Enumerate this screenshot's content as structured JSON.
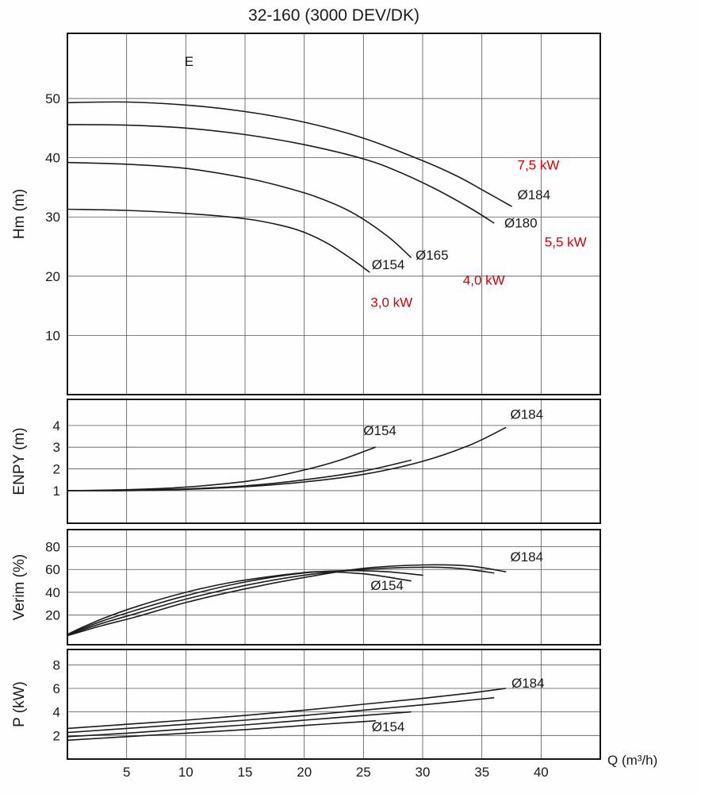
{
  "title": "32-160 (3000 DEV/DK)",
  "x_axis_label": "Q (m³/h)",
  "colors": {
    "curve": "#1c1c1c",
    "grid": "#555555",
    "frame": "#141414",
    "text": "#1a1a1a",
    "power_label": "#d40000"
  },
  "chart_data": [
    {
      "type": "line",
      "title": "32-160 (3000 DEV/DK)",
      "xlabel": "Q (m³/h)",
      "ylabel": "Hm (m)",
      "xlim": [
        0,
        45
      ],
      "ylim": [
        0,
        61
      ],
      "xticks": [
        5,
        10,
        15,
        20,
        25,
        30,
        35,
        40
      ],
      "yticks": [
        10,
        20,
        30,
        40,
        50
      ],
      "grid": true,
      "show_x_tick_labels": false,
      "series": [
        {
          "name": "Ø184",
          "x": [
            0,
            5,
            10,
            15,
            20,
            25,
            30,
            33,
            35,
            37.5
          ],
          "y": [
            49.3,
            49.4,
            48.9,
            47.8,
            46.0,
            43.3,
            39.5,
            36.8,
            34.6,
            31.8
          ],
          "label": {
            "text": "Ø184",
            "x": 38.0,
            "y": 33.0
          }
        },
        {
          "name": "Ø180",
          "x": [
            0,
            5,
            10,
            15,
            20,
            25,
            28,
            31,
            34,
            36
          ],
          "y": [
            45.6,
            45.5,
            45.0,
            43.9,
            42.2,
            39.8,
            37.6,
            34.8,
            31.5,
            29.0
          ],
          "label": {
            "text": "Ø180",
            "x": 36.9,
            "y": 28.2
          }
        },
        {
          "name": "Ø165",
          "x": [
            0,
            5,
            10,
            15,
            18,
            21,
            24,
            27,
            29
          ],
          "y": [
            39.2,
            38.9,
            38.2,
            36.6,
            35.2,
            33.4,
            30.8,
            26.8,
            23.2
          ],
          "label": {
            "text": "Ø165",
            "x": 29.4,
            "y": 22.8
          }
        },
        {
          "name": "Ø154",
          "x": [
            0,
            5,
            10,
            15,
            18,
            20,
            22,
            24,
            25.5
          ],
          "y": [
            31.3,
            31.1,
            30.6,
            29.7,
            28.6,
            27.4,
            25.5,
            22.9,
            20.7
          ],
          "label": {
            "text": "Ø154",
            "x": 25.7,
            "y": 21.2
          }
        }
      ],
      "annotations": [
        {
          "text": "7,5 kW",
          "x": 38.0,
          "y": 38.0,
          "color": "#d40000"
        },
        {
          "text": "5,5 kW",
          "x": 40.3,
          "y": 25.0,
          "color": "#d40000"
        },
        {
          "text": "4,0 kW",
          "x": 33.4,
          "y": 18.6,
          "color": "#d40000"
        },
        {
          "text": "3,0 kW",
          "x": 25.6,
          "y": 14.8,
          "color": "#d40000"
        },
        {
          "text": "E",
          "x": 9.9,
          "y": 55.5,
          "color": "#111111"
        }
      ]
    },
    {
      "type": "line",
      "title": "",
      "xlabel": "Q (m³/h)",
      "ylabel": "ENPY (m)",
      "xlim": [
        0,
        45
      ],
      "ylim": [
        -0.5,
        5.2
      ],
      "xticks": [
        5,
        10,
        15,
        20,
        25,
        30,
        35,
        40
      ],
      "yticks": [
        1,
        2,
        3,
        4
      ],
      "grid": true,
      "show_x_tick_labels": false,
      "series": [
        {
          "name": "Ø154",
          "x": [
            0,
            4,
            8,
            12,
            16,
            20,
            23,
            26
          ],
          "y": [
            1.0,
            1.03,
            1.1,
            1.25,
            1.5,
            1.95,
            2.4,
            3.0
          ],
          "label": {
            "text": "Ø154",
            "x": 25.0,
            "y": 3.55
          }
        },
        {
          "name": "Ø165",
          "x": [
            0,
            5,
            10,
            15,
            20,
            25,
            29
          ],
          "y": [
            1.0,
            1.02,
            1.08,
            1.22,
            1.5,
            1.9,
            2.4
          ]
        },
        {
          "name": "Ø184",
          "x": [
            0,
            5,
            10,
            15,
            20,
            25,
            30,
            34,
            37
          ],
          "y": [
            1.0,
            1.0,
            1.06,
            1.18,
            1.4,
            1.75,
            2.35,
            3.1,
            3.9
          ],
          "label": {
            "text": "Ø184",
            "x": 37.4,
            "y": 4.3
          }
        }
      ],
      "annotations": []
    },
    {
      "type": "line",
      "title": "",
      "xlabel": "Q (m³/h)",
      "ylabel": "Verim (%)",
      "xlim": [
        0,
        45
      ],
      "ylim": [
        -6,
        95
      ],
      "xticks": [
        5,
        10,
        15,
        20,
        25,
        30,
        35,
        40
      ],
      "yticks": [
        20,
        40,
        60,
        80
      ],
      "grid": true,
      "show_x_tick_labels": false,
      "series": [
        {
          "name": "Ø154",
          "x": [
            0,
            1,
            3,
            6,
            10,
            14,
            18,
            21,
            24,
            26,
            29
          ],
          "y": [
            3,
            8,
            17,
            28,
            40,
            49,
            55,
            58,
            57,
            55,
            50
          ],
          "label": {
            "text": "Ø154",
            "x": 25.6,
            "y": 42
          }
        },
        {
          "name": "Ø165",
          "x": [
            0,
            1,
            3,
            6,
            10,
            15,
            20,
            24,
            27,
            30
          ],
          "y": [
            3,
            7,
            15,
            25,
            37,
            49,
            57,
            59,
            58,
            55
          ]
        },
        {
          "name": "Ø180",
          "x": [
            0,
            1,
            3,
            6,
            10,
            15,
            20,
            25,
            30,
            33,
            36
          ],
          "y": [
            2,
            6,
            13,
            22,
            34,
            46,
            55,
            60,
            62,
            61,
            57
          ]
        },
        {
          "name": "Ø184",
          "x": [
            0,
            1,
            3,
            6,
            10,
            15,
            20,
            25,
            30,
            34,
            37
          ],
          "y": [
            2,
            5,
            11,
            19,
            31,
            43,
            53,
            61,
            64,
            63,
            58
          ],
          "label": {
            "text": "Ø184",
            "x": 37.4,
            "y": 67
          }
        }
      ],
      "annotations": []
    },
    {
      "type": "line",
      "title": "",
      "xlabel": "Q (m³/h)",
      "ylabel": "P (kW)",
      "xlim": [
        0,
        45
      ],
      "ylim": [
        0,
        9.3
      ],
      "xticks": [
        5,
        10,
        15,
        20,
        25,
        30,
        35,
        40
      ],
      "yticks": [
        2,
        4,
        6,
        8
      ],
      "grid": true,
      "show_x_tick_labels": true,
      "series": [
        {
          "name": "Ø154",
          "x": [
            0,
            5,
            10,
            15,
            20,
            23,
            26
          ],
          "y": [
            1.6,
            1.9,
            2.2,
            2.5,
            2.85,
            3.05,
            3.25
          ],
          "label": {
            "text": "Ø154",
            "x": 25.7,
            "y": 2.35
          }
        },
        {
          "name": "Ø165",
          "x": [
            0,
            5,
            10,
            15,
            20,
            25,
            29
          ],
          "y": [
            1.9,
            2.2,
            2.55,
            2.9,
            3.3,
            3.7,
            4.0
          ]
        },
        {
          "name": "Ø180",
          "x": [
            0,
            5,
            10,
            15,
            20,
            25,
            30,
            33,
            36
          ],
          "y": [
            2.25,
            2.6,
            2.95,
            3.3,
            3.7,
            4.15,
            4.6,
            4.9,
            5.2
          ]
        },
        {
          "name": "Ø184",
          "x": [
            0,
            5,
            10,
            15,
            20,
            25,
            30,
            34,
            37
          ],
          "y": [
            2.6,
            2.95,
            3.3,
            3.7,
            4.15,
            4.65,
            5.15,
            5.6,
            6.0
          ],
          "label": {
            "text": "Ø184",
            "x": 37.5,
            "y": 6.05
          }
        }
      ],
      "annotations": []
    }
  ]
}
